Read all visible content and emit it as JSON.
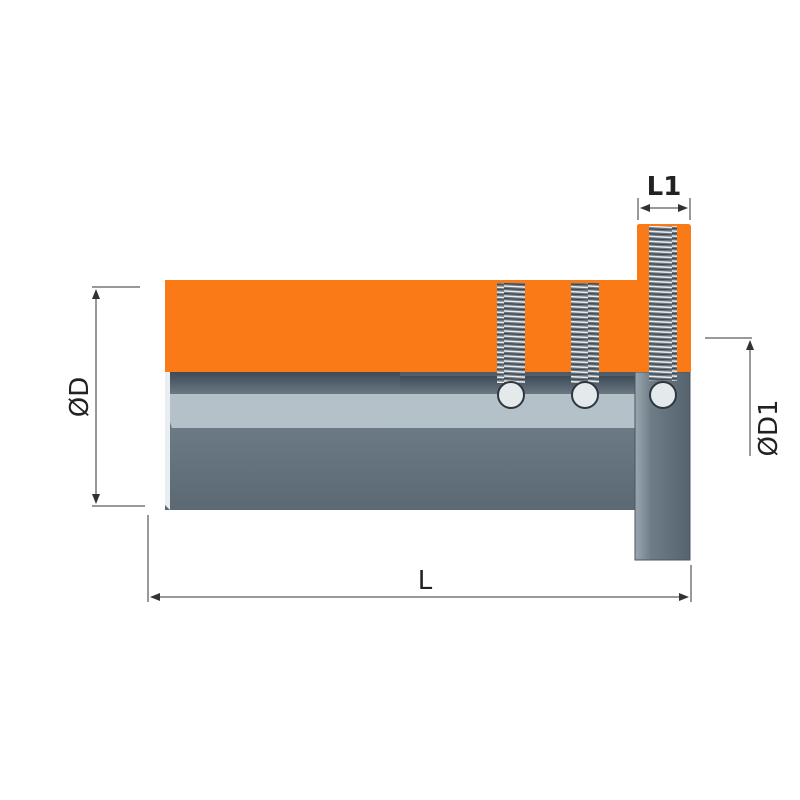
{
  "labels": {
    "diameter_d": "ØD",
    "diameter_d1": "ØD1",
    "length_l": "L",
    "length_l1": "L1"
  },
  "colors": {
    "body_orange": "#f97a17",
    "steel_dark": "#5e6d78",
    "steel_light": "#b4c1c9",
    "steel_stripe": "#45535f",
    "dimension_line": "#333333"
  }
}
